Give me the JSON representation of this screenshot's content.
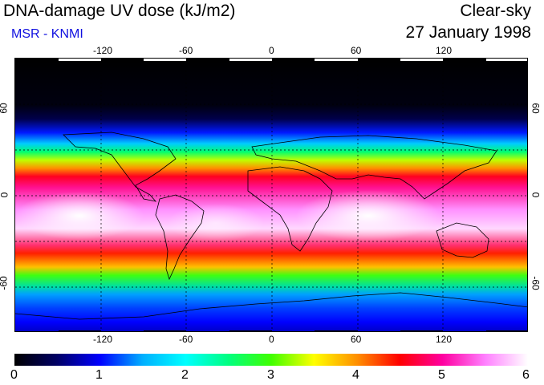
{
  "title": "DNA-damage UV dose (kJ/m2)",
  "credit": "MSR - KNMI",
  "condition": "Clear-sky",
  "date": "27 January 1998",
  "map": {
    "projection": "equirectangular",
    "lon_range": [
      -180,
      180
    ],
    "lat_range": [
      -90,
      90
    ],
    "lon_ticks": [
      -120,
      -60,
      0,
      60,
      120
    ],
    "lat_ticks": [
      60,
      0,
      -60
    ],
    "lon_tick_labels": [
      "-120",
      "-60",
      "0",
      "60",
      "120"
    ],
    "lat_tick_labels": [
      "60",
      "0",
      "-60"
    ]
  },
  "colorbar": {
    "min": 0,
    "max": 6,
    "labels": [
      "0",
      "1",
      "2",
      "3",
      "4",
      "5",
      "6"
    ],
    "stops": [
      "#000000",
      "#000066",
      "#0000ff",
      "#00b0ff",
      "#00ffff",
      "#00ff80",
      "#40ff00",
      "#ffff00",
      "#ff9000",
      "#ff0000",
      "#ff00a0",
      "#ff80ff",
      "#ffffff"
    ]
  }
}
